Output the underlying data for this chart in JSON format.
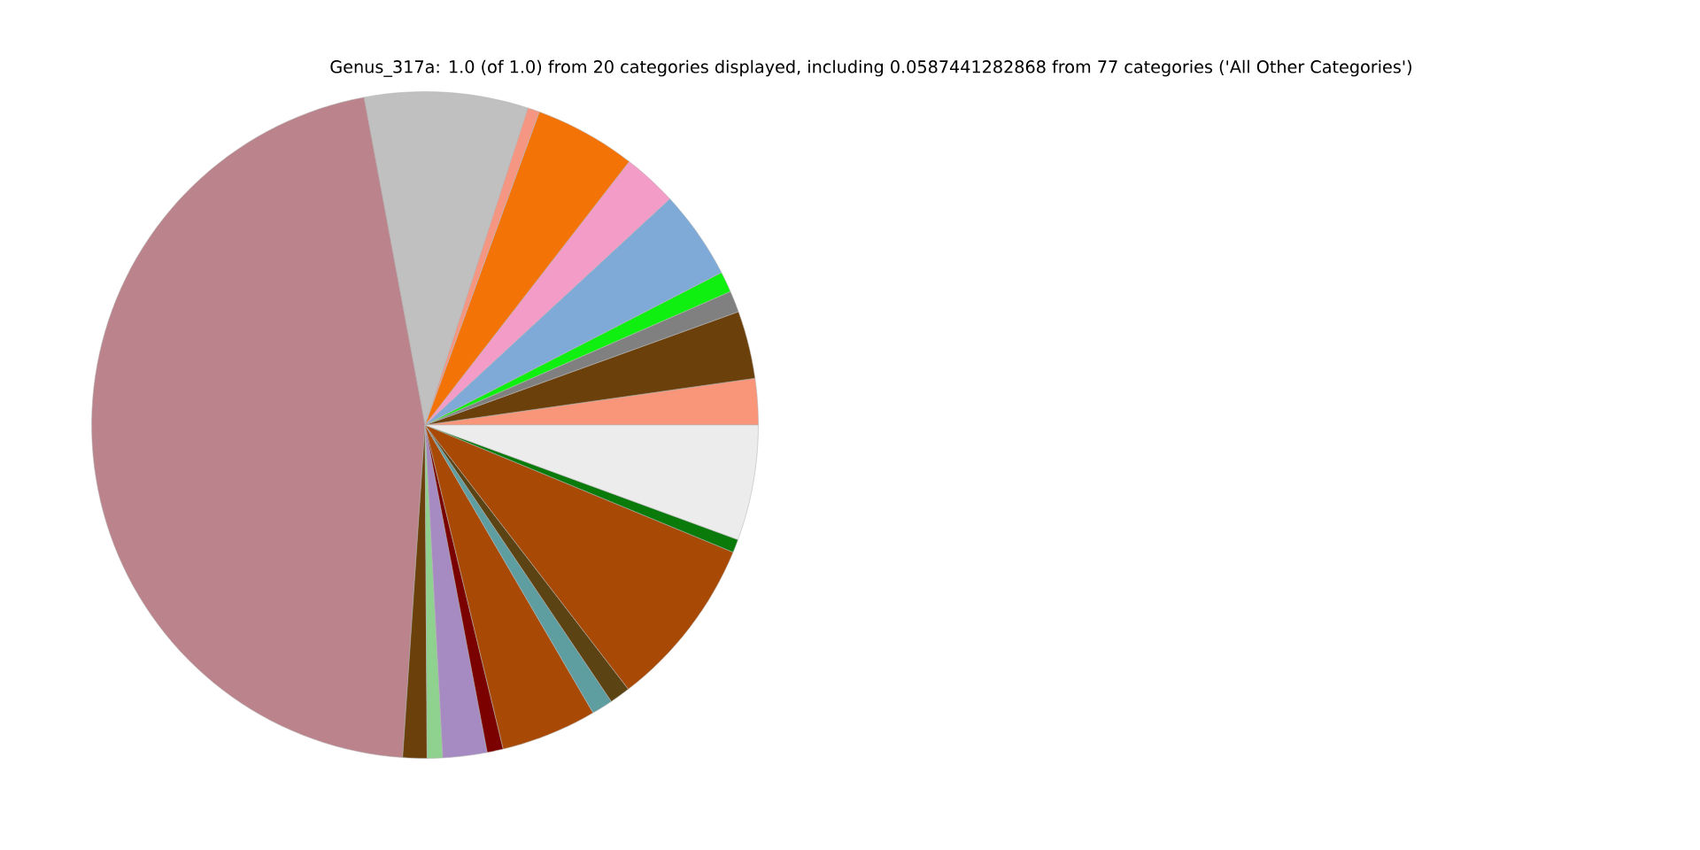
{
  "chart_data": {
    "type": "pie",
    "title": "Genus_317a: 1.0 (of 1.0) from 20 categories displayed, including 0.0587441282868 from 77 categories ('All Other Categories')",
    "categories": [
      null,
      null,
      null,
      null,
      null,
      null,
      null,
      null,
      null,
      null,
      null,
      null,
      null,
      null,
      null,
      null,
      null,
      null,
      null,
      null
    ],
    "values": [
      2.24,
      3.28,
      1.04,
      1.0,
      4.31,
      2.64,
      4.92,
      0.58,
      7.92,
      46.0,
      1.17,
      0.75,
      2.14,
      0.78,
      4.64,
      1.03,
      1.0,
      8.33,
      0.64,
      5.59
    ],
    "colors": [
      "#f9967a",
      "#6b400a",
      "#808080",
      "#10f010",
      "#7faad8",
      "#f49cc8",
      "#f37307",
      "#f59683",
      "#c0c0c0",
      "#bb838b",
      "#6b400a",
      "#8fd18f",
      "#a68ac2",
      "#7b0000",
      "#a84a05",
      "#5f9ea0",
      "#5c4314",
      "#a84a05",
      "#0a7a0a",
      "#ececec"
    ]
  }
}
